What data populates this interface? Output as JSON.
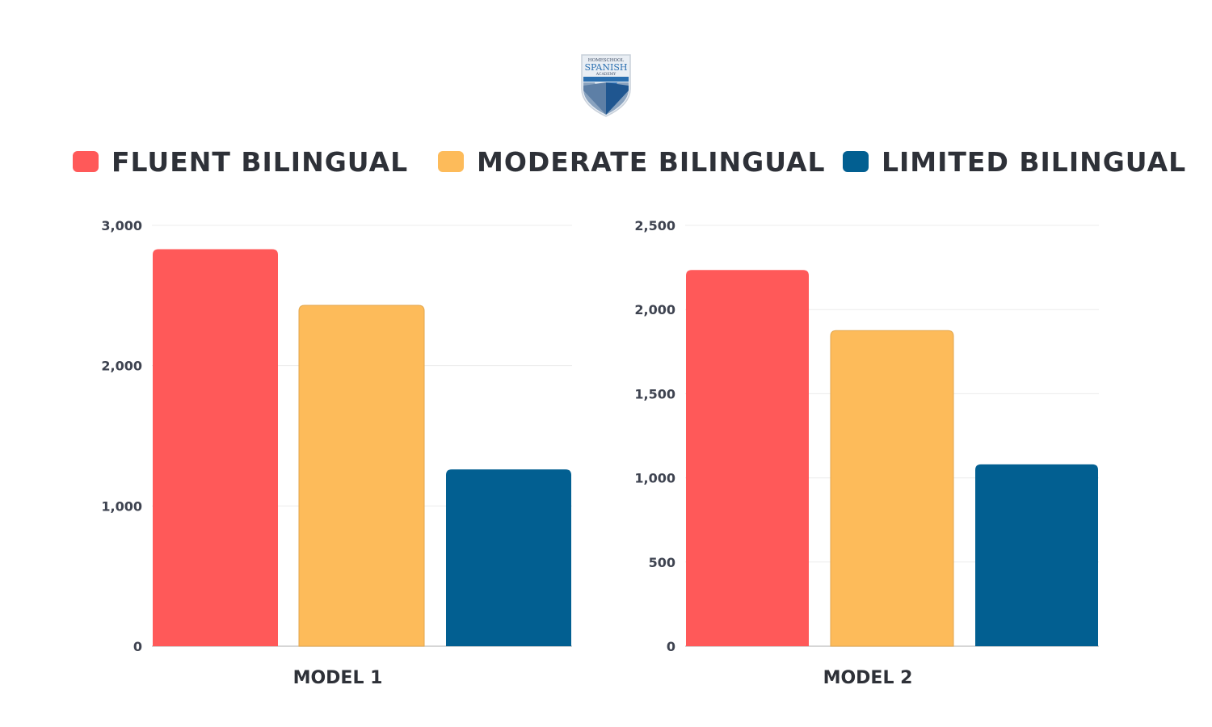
{
  "logo": {
    "line1": "HOMESCHOOL",
    "line2": "SPANISH",
    "line3": "ACADEMY"
  },
  "legend": [
    {
      "label": "FLUENT BILINGUAL",
      "color": "#FF5959"
    },
    {
      "label": "MODERATE BILINGUAL",
      "color": "#FDBB5A"
    },
    {
      "label": "LIMITED BILINGUAL",
      "color": "#025F91"
    }
  ],
  "chart_data": [
    {
      "type": "bar",
      "categories": [
        "MODEL 1"
      ],
      "series": [
        {
          "name": "FLUENT BILINGUAL",
          "values": [
            2830
          ]
        },
        {
          "name": "MODERATE BILINGUAL",
          "values": [
            2430
          ]
        },
        {
          "name": "LIMITED BILINGUAL",
          "values": [
            1260
          ]
        }
      ],
      "ylim": [
        0,
        3000
      ],
      "yticks": [
        0,
        1000,
        2000,
        3000
      ],
      "ytick_labels": [
        "0",
        "1,000",
        "2,000",
        "3,000"
      ],
      "grid": true
    },
    {
      "type": "bar",
      "categories": [
        "MODEL 2"
      ],
      "series": [
        {
          "name": "FLUENT BILINGUAL",
          "values": [
            2235
          ]
        },
        {
          "name": "MODERATE BILINGUAL",
          "values": [
            1875
          ]
        },
        {
          "name": "LIMITED BILINGUAL",
          "values": [
            1080
          ]
        }
      ],
      "ylim": [
        0,
        2500
      ],
      "yticks": [
        0,
        500,
        1000,
        1500,
        2000,
        2500
      ],
      "ytick_labels": [
        "0",
        "500",
        "1,000",
        "1,500",
        "2,000",
        "2,500"
      ],
      "grid": true
    }
  ]
}
